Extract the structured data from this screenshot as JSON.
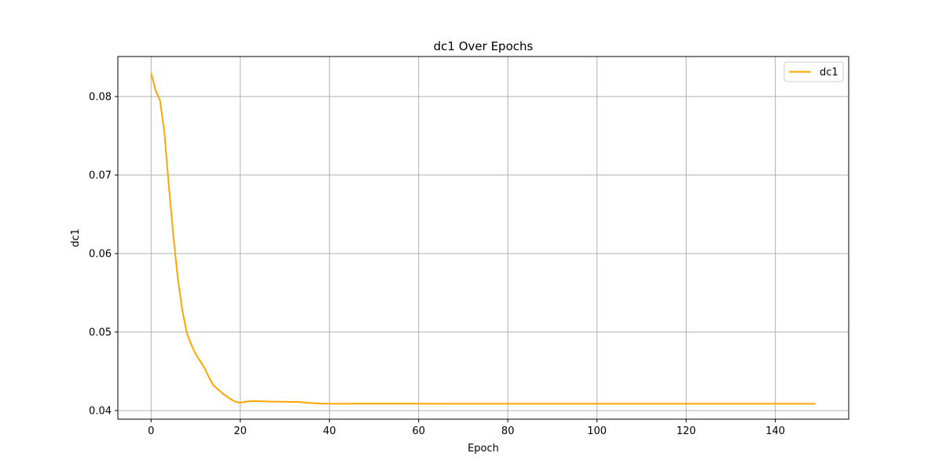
{
  "chart_data": {
    "type": "line",
    "title": "dc1 Over Epochs",
    "xlabel": "Epoch",
    "ylabel": "dc1",
    "xlim": [
      -7.45,
      156.45
    ],
    "ylim": [
      0.0389,
      0.0851
    ],
    "xticks": [
      0,
      20,
      40,
      60,
      80,
      100,
      120,
      140
    ],
    "yticks": [
      0.04,
      0.05,
      0.06,
      0.07,
      0.08
    ],
    "ytick_labels": [
      "0.04",
      "0.05",
      "0.06",
      "0.07",
      "0.08"
    ],
    "grid": true,
    "legend_position": "top-right",
    "colors": {
      "series": "#ffa500",
      "grid": "#b0b0b0",
      "axis": "#000000"
    },
    "series": [
      {
        "name": "dc1",
        "x": [
          0,
          1,
          2,
          3,
          4,
          5,
          6,
          7,
          8,
          9,
          10,
          11,
          12,
          13,
          14,
          15,
          16,
          17,
          18,
          19,
          20,
          21,
          22,
          23,
          24,
          25,
          26,
          27,
          28,
          29,
          30,
          31,
          32,
          33,
          34,
          35,
          36,
          37,
          38,
          39,
          40,
          41,
          42,
          43,
          44,
          45,
          46,
          47,
          48,
          49,
          50,
          55,
          60,
          65,
          70,
          75,
          80,
          85,
          90,
          95,
          100,
          105,
          110,
          115,
          120,
          125,
          130,
          135,
          140,
          145,
          149
        ],
        "y": [
          0.083,
          0.0808,
          0.0795,
          0.0753,
          0.0685,
          0.0622,
          0.0568,
          0.0528,
          0.0499,
          0.0484,
          0.0472,
          0.0463,
          0.0454,
          0.0442,
          0.0432,
          0.0427,
          0.0422,
          0.0418,
          0.0414,
          0.0411,
          0.041,
          0.0411,
          0.0412,
          0.0412,
          0.0412,
          0.04118,
          0.04116,
          0.04114,
          0.04114,
          0.04113,
          0.04112,
          0.0411,
          0.0411,
          0.0411,
          0.04105,
          0.041,
          0.04095,
          0.04092,
          0.0409,
          0.04088,
          0.04087,
          0.04086,
          0.04086,
          0.04086,
          0.04086,
          0.04087,
          0.04087,
          0.04087,
          0.04087,
          0.04087,
          0.04087,
          0.04087,
          0.04087,
          0.04086,
          0.04086,
          0.04086,
          0.04086,
          0.04086,
          0.04086,
          0.04086,
          0.04086,
          0.04086,
          0.04086,
          0.04086,
          0.04086,
          0.04086,
          0.04086,
          0.04086,
          0.04086,
          0.04086,
          0.04086
        ]
      }
    ]
  }
}
